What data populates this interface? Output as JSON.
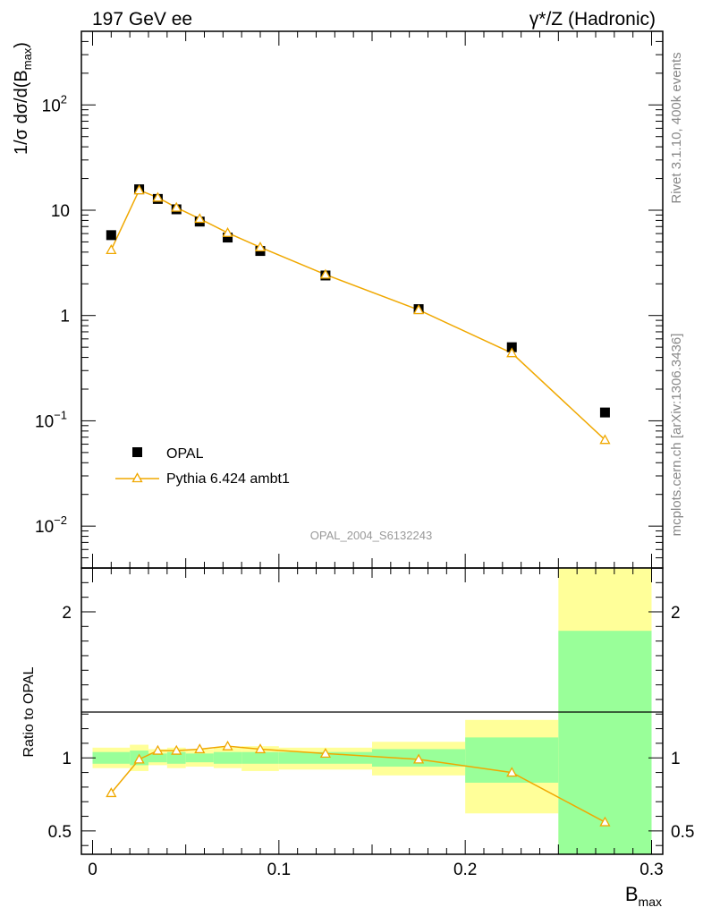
{
  "header": {
    "left_title": "197 GeV ee",
    "right_title": "γ*/Z (Hadronic)"
  },
  "side_labels": {
    "rivet": "Rivet 3.1.10,  400k events",
    "source": "mcplots.cern.ch [arXiv:1306.3436]"
  },
  "colors": {
    "mc": "#f0a800",
    "band_inner": "#99ff99",
    "band_outer": "#ffff99",
    "data": "#000000",
    "watermark": "#999999",
    "side_text": "#888888"
  },
  "chart_data": [
    {
      "type": "scatter",
      "panel": "main",
      "analysis_label": "OPAL_2004_S6132243",
      "ylabel": "1/σ dσ/d(B",
      "ylabel_sub": "max",
      "ylabel_tail": ")",
      "yscale": "log",
      "ylim": [
        0.004,
        500
      ],
      "xlim": [
        -0.006,
        0.306
      ],
      "yticks": [
        {
          "value": 0.01,
          "base": "10",
          "exp": "−2"
        },
        {
          "value": 0.1,
          "base": "10",
          "exp": "−1"
        },
        {
          "value": 1,
          "text": "1"
        },
        {
          "value": 10,
          "text": "10"
        },
        {
          "value": 100,
          "base": "10",
          "exp": "2"
        }
      ],
      "legend": {
        "placement": "bottom-left",
        "data_label": "OPAL",
        "mc_label": "Pythia 6.424 ambt1"
      },
      "series": [
        {
          "name": "OPAL",
          "marker": "square",
          "x": [
            0.01,
            0.025,
            0.035,
            0.045,
            0.0575,
            0.0725,
            0.09,
            0.125,
            0.175,
            0.225,
            0.275
          ],
          "y": [
            5.8,
            15.8,
            12.8,
            10.2,
            7.8,
            5.5,
            4.1,
            2.4,
            1.15,
            0.5,
            0.12
          ]
        },
        {
          "name": "Pythia 6.424 ambt1",
          "marker": "triangle",
          "x": [
            0.01,
            0.025,
            0.035,
            0.045,
            0.0575,
            0.0725,
            0.09,
            0.125,
            0.175,
            0.225,
            0.275
          ],
          "y": [
            4.2,
            15.5,
            13.2,
            10.6,
            8.3,
            6.1,
            4.45,
            2.45,
            1.13,
            0.44,
            0.066
          ]
        }
      ]
    },
    {
      "type": "line",
      "panel": "ratio",
      "ylabel": "Ratio to OPAL",
      "xlabel": "B",
      "xlabel_sub": "max",
      "ylim": [
        0.34,
        2.3
      ],
      "xlim": [
        -0.006,
        0.306
      ],
      "xticks": [
        0,
        0.1,
        0.2,
        0.3
      ],
      "xtick_labels": [
        "0",
        "0.1",
        "0.2",
        "0.3"
      ],
      "yticks": [
        0.5,
        1,
        2
      ],
      "ytick_labels": [
        "0.5",
        "1",
        "2"
      ],
      "bins": [
        {
          "lo": 0.0,
          "hi": 0.02,
          "inner": [
            0.96,
            1.04
          ],
          "outer": [
            0.93,
            1.07
          ]
        },
        {
          "lo": 0.02,
          "hi": 0.03,
          "inner": [
            0.95,
            1.05
          ],
          "outer": [
            0.91,
            1.09
          ]
        },
        {
          "lo": 0.03,
          "hi": 0.04,
          "inner": [
            0.97,
            1.03
          ],
          "outer": [
            0.95,
            1.06
          ]
        },
        {
          "lo": 0.04,
          "hi": 0.05,
          "inner": [
            0.96,
            1.04
          ],
          "outer": [
            0.93,
            1.07
          ]
        },
        {
          "lo": 0.05,
          "hi": 0.065,
          "inner": [
            0.97,
            1.03
          ],
          "outer": [
            0.94,
            1.06
          ]
        },
        {
          "lo": 0.065,
          "hi": 0.08,
          "inner": [
            0.96,
            1.04
          ],
          "outer": [
            0.93,
            1.07
          ]
        },
        {
          "lo": 0.08,
          "hi": 0.1,
          "inner": [
            0.96,
            1.04
          ],
          "outer": [
            0.91,
            1.08
          ]
        },
        {
          "lo": 0.1,
          "hi": 0.15,
          "inner": [
            0.96,
            1.04
          ],
          "outer": [
            0.92,
            1.07
          ]
        },
        {
          "lo": 0.15,
          "hi": 0.2,
          "inner": [
            0.94,
            1.06
          ],
          "outer": [
            0.88,
            1.11
          ]
        },
        {
          "lo": 0.2,
          "hi": 0.25,
          "inner": [
            0.83,
            1.14
          ],
          "outer": [
            0.62,
            1.26
          ]
        },
        {
          "lo": 0.25,
          "hi": 0.3,
          "inner": [
            0.34,
            1.87
          ],
          "outer": [
            0.34,
            2.3
          ]
        }
      ],
      "series": [
        {
          "name": "Pythia 6.424 ambt1 / OPAL",
          "x": [
            0.01,
            0.025,
            0.035,
            0.045,
            0.0575,
            0.0725,
            0.09,
            0.125,
            0.175,
            0.225,
            0.275
          ],
          "y": [
            0.76,
            0.99,
            1.05,
            1.05,
            1.06,
            1.08,
            1.06,
            1.03,
            0.99,
            0.9,
            0.56
          ]
        }
      ]
    }
  ]
}
